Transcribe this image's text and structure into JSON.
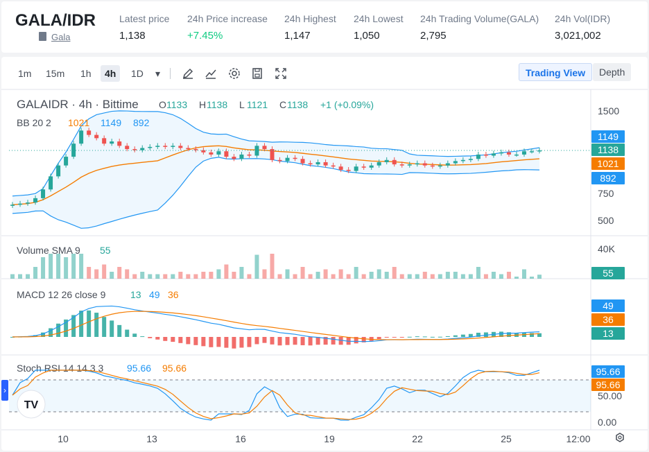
{
  "header": {
    "pair": "GALA/IDR",
    "sub": "Gala",
    "stats": [
      {
        "label": "Latest price",
        "value": "1,138",
        "up": false
      },
      {
        "label": "24h Price increase",
        "value": "+7.45%",
        "up": true
      },
      {
        "label": "24h Highest",
        "value": "1,147",
        "up": false
      },
      {
        "label": "24h Lowest",
        "value": "1,050",
        "up": false
      },
      {
        "label": "24h Trading Volume(GALA)",
        "value": "2,795",
        "up": false
      },
      {
        "label": "24h Vol(IDR)",
        "value": "3,021,002",
        "up": false
      }
    ]
  },
  "toolbar": {
    "timeframes": [
      "1m",
      "15m",
      "1h",
      "4h",
      "1D"
    ],
    "active": "4h",
    "trading_view": "Trading View",
    "depth": "Depth"
  },
  "legend": {
    "symbol": "GALAIDR · 4h · Bittime",
    "o_label": "O",
    "o": "1133",
    "h_label": "H",
    "h": "1138",
    "l_label": "L",
    "l": "1121",
    "c_label": "C",
    "c": "1138",
    "change": "+1 (+0.09%)",
    "bb_label": "BB 20 2",
    "bb_mid": "1021",
    "bb_up": "1149",
    "bb_low": "892",
    "vol_label": "Volume SMA 9",
    "vol_val": "55",
    "macd_label": "MACD 12 26 close 9",
    "macd_hist": "13",
    "macd_line": "49",
    "macd_signal": "36",
    "rsi_label": "Stoch RSI 14 14 3 3",
    "rsi_k": "95.66",
    "rsi_d": "95.66"
  },
  "axis": {
    "price_ticks": [
      "1500",
      "750",
      "500"
    ],
    "vol_ticks": [
      "40K"
    ],
    "rsi_ticks": [
      "50.00",
      "0.00"
    ],
    "x_ticks": [
      "10",
      "13",
      "16",
      "19",
      "22",
      "25",
      "12:00"
    ]
  },
  "badges": {
    "bb_up": "1149",
    "price": "1138",
    "bb_mid": "1021",
    "bb_low": "892",
    "vol": "55",
    "macd_line": "49",
    "macd_signal": "36",
    "macd_hist": "13",
    "rsi_k": "95.66",
    "rsi_d": "95.66"
  },
  "colors": {
    "up": "#26a69a",
    "down": "#ef5350",
    "bb": "#2962ff",
    "bb_mid": "#f57c00",
    "badge_blue": "#2196f3",
    "badge_green": "#26a69a",
    "badge_orange": "#f57c00",
    "badge_blue2": "#1e88e5"
  },
  "logo": "TV",
  "chart_data": {
    "type": "candlestick",
    "price_last": 1138,
    "bb": {
      "period": 20,
      "mult": 2,
      "mid": 1021,
      "upper": 1149,
      "lower": 892
    },
    "closes": [
      640,
      650,
      660,
      700,
      780,
      900,
      1000,
      1080,
      1200,
      1320,
      1280,
      1250,
      1200,
      1220,
      1180,
      1150,
      1140,
      1160,
      1170,
      1180,
      1170,
      1180,
      1160,
      1150,
      1140,
      1120,
      1100,
      1130,
      1080,
      1060,
      1100,
      1090,
      1180,
      1150,
      1050,
      1040,
      1070,
      1060,
      1020,
      1010,
      1030,
      1000,
      990,
      960,
      950,
      990,
      980,
      1000,
      1030,
      1050,
      1010,
      1000,
      1010,
      1020,
      1000,
      990,
      1000,
      1020,
      1040,
      1050,
      1060,
      1100,
      1090,
      1110,
      1120,
      1100,
      1100,
      1130,
      1130,
      1138
    ],
    "volume_sma": 55,
    "macd": {
      "line": 49,
      "signal": 36,
      "hist": 13
    },
    "stoch_rsi": {
      "k": 95.66,
      "d": 95.66
    }
  }
}
